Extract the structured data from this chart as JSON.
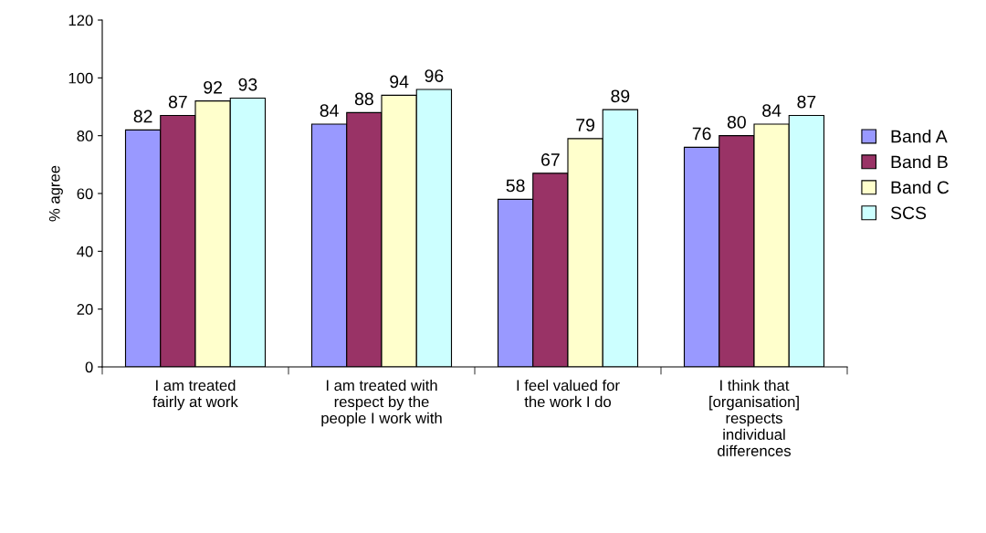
{
  "chart_data": {
    "type": "bar",
    "ylabel": "% agree",
    "categories": [
      "I am treated fairly at work",
      "I am treated with respect by the people I work with",
      "I feel valued for the work I do",
      "I think that [organisation] respects individual differences"
    ],
    "series": [
      {
        "name": "Band A",
        "color": "#9999ff",
        "values": [
          82,
          84,
          58,
          76
        ]
      },
      {
        "name": "Band B",
        "color": "#993366",
        "values": [
          87,
          88,
          67,
          80
        ]
      },
      {
        "name": "Band C",
        "color": "#ffffcc",
        "values": [
          92,
          94,
          79,
          84
        ]
      },
      {
        "name": "SCS",
        "color": "#ccffff",
        "values": [
          93,
          96,
          89,
          87
        ]
      }
    ],
    "ylim": [
      0,
      120
    ],
    "yticks": [
      0,
      20,
      40,
      60,
      80,
      100,
      120
    ],
    "grid": false,
    "legend": "right",
    "data_labels": true
  }
}
